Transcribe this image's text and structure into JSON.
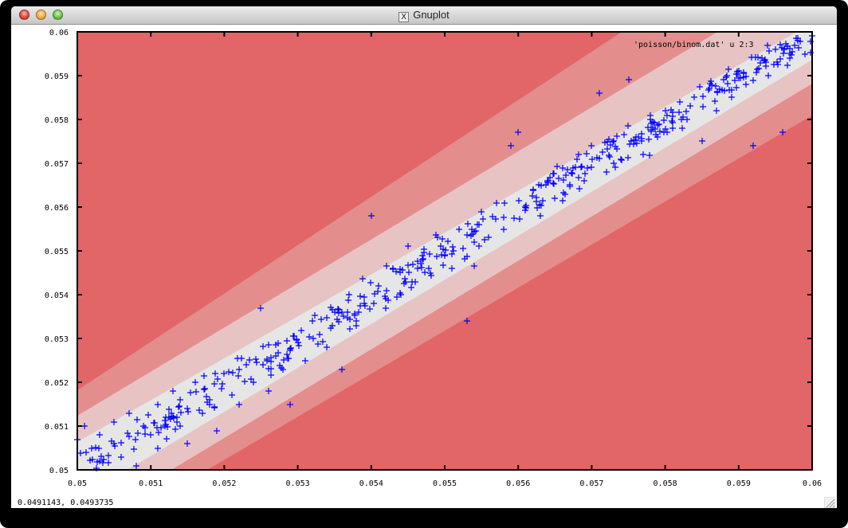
{
  "window": {
    "title": "Gnuplot",
    "title_icon": "x11-icon",
    "controls": [
      "close",
      "minimize",
      "zoom"
    ]
  },
  "status_bar": {
    "coordinates": "0.0491143,  0.0493735"
  },
  "colors": {
    "outer": "#e26567",
    "band2": "#e38d8c",
    "band1": "#e8c3c3",
    "core": "#e6e6e6",
    "points": "#0000ff",
    "axes": "#000000"
  },
  "chart_data": {
    "type": "scatter",
    "title": "",
    "xlabel": "",
    "ylabel": "",
    "xlim": [
      0.05,
      0.06
    ],
    "ylim": [
      0.05,
      0.06
    ],
    "xticks": [
      "0.05",
      "0.051",
      "0.052",
      "0.053",
      "0.054",
      "0.055",
      "0.056",
      "0.057",
      "0.058",
      "0.059",
      "0.06"
    ],
    "yticks": [
      "0.05",
      "0.051",
      "0.052",
      "0.053",
      "0.054",
      "0.055",
      "0.056",
      "0.057",
      "0.058",
      "0.059",
      "0.06"
    ],
    "grid": false,
    "legend": {
      "position": "top-right",
      "entries": [
        "'poisson/binom.dat' u 2:3"
      ]
    },
    "marker": "+",
    "background": "filled contour bands along y = x diagonal (gray core, light pink, mid pink, red outer)",
    "series": [
      {
        "name": "'poisson/binom.dat' u 2:3",
        "points_note": "~500 points scattered along y≈x with sd≈0.0004",
        "points": [
          [
            0.05,
            0.0507
          ],
          [
            0.0501,
            0.051
          ],
          [
            0.0502,
            0.0505
          ],
          [
            0.0503,
            0.0508
          ],
          [
            0.0503,
            0.0502
          ],
          [
            0.0505,
            0.0511
          ],
          [
            0.0505,
            0.0506
          ],
          [
            0.0506,
            0.0503
          ],
          [
            0.0507,
            0.0513
          ],
          [
            0.0508,
            0.0501
          ],
          [
            0.0509,
            0.051
          ],
          [
            0.051,
            0.0508
          ],
          [
            0.0511,
            0.0515
          ],
          [
            0.0511,
            0.0505
          ],
          [
            0.0512,
            0.0512
          ],
          [
            0.0513,
            0.0518
          ],
          [
            0.0514,
            0.051
          ],
          [
            0.0515,
            0.0514
          ],
          [
            0.0515,
            0.0506
          ],
          [
            0.0516,
            0.052
          ],
          [
            0.0517,
            0.0513
          ],
          [
            0.0518,
            0.0516
          ],
          [
            0.0519,
            0.0509
          ],
          [
            0.052,
            0.0522
          ],
          [
            0.0521,
            0.0517
          ],
          [
            0.0522,
            0.0515
          ],
          [
            0.0523,
            0.0524
          ],
          [
            0.0524,
            0.052
          ],
          [
            0.0525,
            0.0537
          ],
          [
            0.0526,
            0.0518
          ],
          [
            0.0527,
            0.0526
          ],
          [
            0.0528,
            0.0523
          ],
          [
            0.0529,
            0.0515
          ],
          [
            0.053,
            0.0529
          ],
          [
            0.0531,
            0.0525
          ],
          [
            0.0532,
            0.0534
          ],
          [
            0.0533,
            0.0531
          ],
          [
            0.0534,
            0.0528
          ],
          [
            0.0535,
            0.0536
          ],
          [
            0.0536,
            0.0523
          ],
          [
            0.0537,
            0.054
          ],
          [
            0.0538,
            0.0533
          ],
          [
            0.0539,
            0.0538
          ],
          [
            0.054,
            0.0558
          ],
          [
            0.0541,
            0.0542
          ],
          [
            0.0542,
            0.0537
          ],
          [
            0.0543,
            0.0546
          ],
          [
            0.0544,
            0.054
          ],
          [
            0.0545,
            0.0551
          ],
          [
            0.0546,
            0.0543
          ],
          [
            0.0547,
            0.0548
          ],
          [
            0.0548,
            0.0545
          ],
          [
            0.0549,
            0.0553
          ],
          [
            0.055,
            0.0549
          ],
          [
            0.0551,
            0.0546
          ],
          [
            0.0552,
            0.0555
          ],
          [
            0.0553,
            0.0534
          ],
          [
            0.0554,
            0.0552
          ],
          [
            0.0555,
            0.0559
          ],
          [
            0.0556,
            0.0553
          ],
          [
            0.0557,
            0.0561
          ],
          [
            0.0558,
            0.0555
          ],
          [
            0.0559,
            0.0574
          ],
          [
            0.056,
            0.0577
          ],
          [
            0.0561,
            0.056
          ],
          [
            0.0562,
            0.0564
          ],
          [
            0.0563,
            0.0558
          ],
          [
            0.0564,
            0.0566
          ],
          [
            0.0565,
            0.0562
          ],
          [
            0.0566,
            0.0569
          ],
          [
            0.0567,
            0.0565
          ],
          [
            0.0568,
            0.0571
          ],
          [
            0.0569,
            0.0566
          ],
          [
            0.057,
            0.0574
          ],
          [
            0.0571,
            0.0586
          ],
          [
            0.0572,
            0.0568
          ],
          [
            0.0573,
            0.0575
          ],
          [
            0.0574,
            0.0571
          ],
          [
            0.0575,
            0.0589
          ],
          [
            0.0576,
            0.0576
          ],
          [
            0.0577,
            0.0572
          ],
          [
            0.0578,
            0.058
          ],
          [
            0.0579,
            0.0576
          ],
          [
            0.058,
            0.0582
          ],
          [
            0.0581,
            0.0578
          ],
          [
            0.0582,
            0.0584
          ],
          [
            0.0583,
            0.058
          ],
          [
            0.0584,
            0.0585
          ],
          [
            0.0585,
            0.0575
          ],
          [
            0.0586,
            0.0587
          ],
          [
            0.0587,
            0.0582
          ],
          [
            0.0588,
            0.0589
          ],
          [
            0.0589,
            0.0585
          ],
          [
            0.059,
            0.0591
          ],
          [
            0.0591,
            0.0588
          ],
          [
            0.0592,
            0.0574
          ],
          [
            0.0593,
            0.0593
          ],
          [
            0.0594,
            0.059
          ],
          [
            0.0595,
            0.0596
          ],
          [
            0.0596,
            0.0577
          ],
          [
            0.0597,
            0.0594
          ],
          [
            0.0598,
            0.0598
          ],
          [
            0.0599,
            0.0595
          ],
          [
            0.06,
            0.0599
          ]
        ]
      }
    ]
  }
}
